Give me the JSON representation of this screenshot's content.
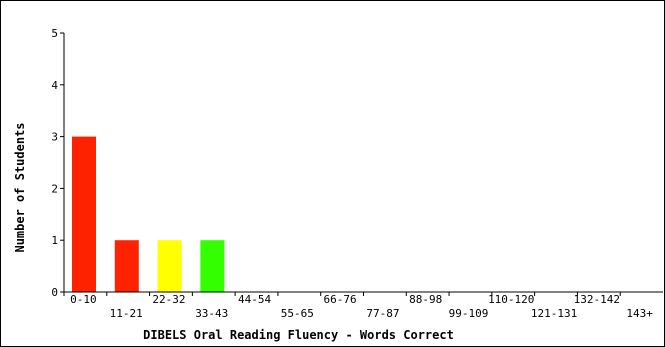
{
  "chart_data": {
    "type": "bar",
    "title": "",
    "xlabel": "DIBELS Oral Reading Fluency - Words Correct",
    "ylabel": "Number of Students",
    "categories": [
      "0-10",
      "11-21",
      "22-32",
      "33-43",
      "44-54",
      "55-65",
      "66-76",
      "77-87",
      "88-98",
      "99-109",
      "110-120",
      "121-131",
      "132-142",
      "143+"
    ],
    "values": [
      3,
      1,
      1,
      1,
      0,
      0,
      0,
      0,
      0,
      0,
      0,
      0,
      0,
      0
    ],
    "bar_colors": [
      "#ff2200",
      "#ff2200",
      "#ffff00",
      "#33ff00",
      "#ff2200",
      "#ff2200",
      "#ff2200",
      "#ff2200",
      "#ff2200",
      "#ff2200",
      "#ff2200",
      "#ff2200",
      "#ff2200",
      "#ff2200"
    ],
    "ylim": [
      0,
      5
    ],
    "yticks": [
      0,
      1,
      2,
      3,
      4,
      5
    ],
    "grid": false,
    "legend": "none"
  }
}
